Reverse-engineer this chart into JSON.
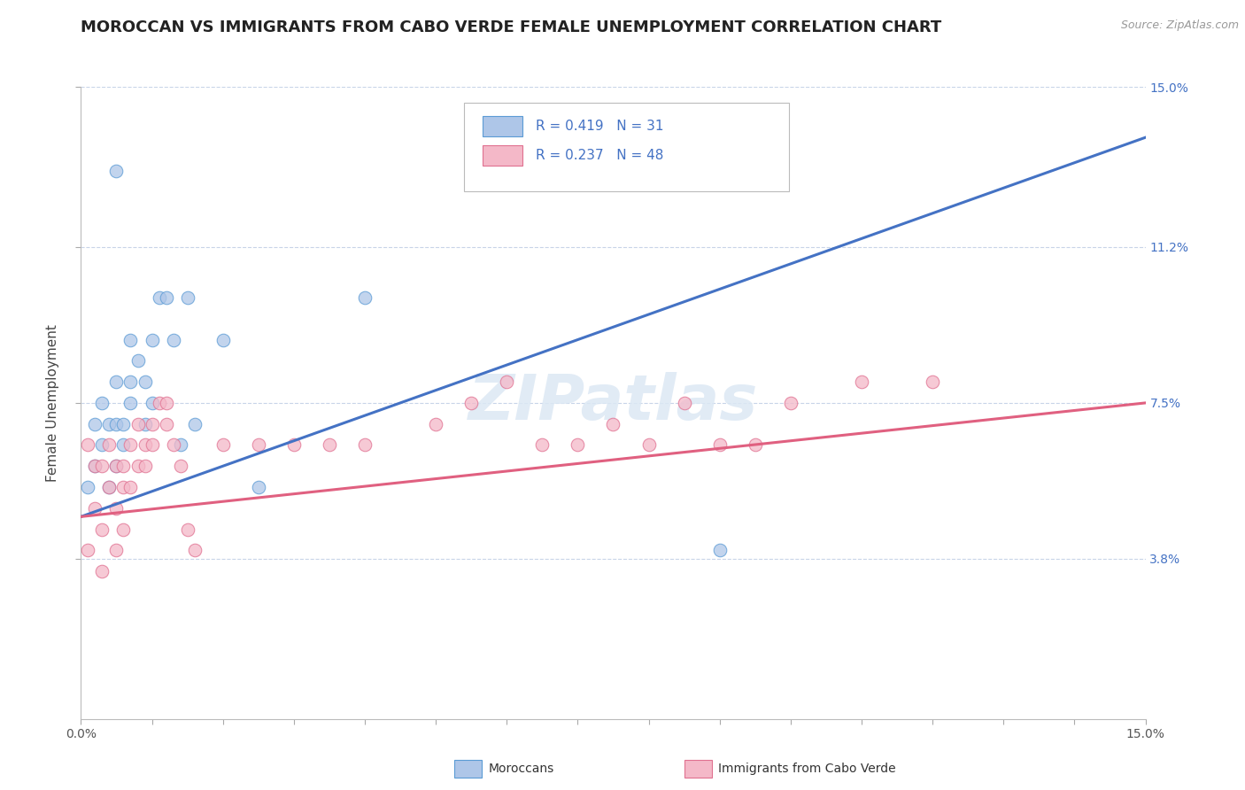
{
  "title": "MOROCCAN VS IMMIGRANTS FROM CABO VERDE FEMALE UNEMPLOYMENT CORRELATION CHART",
  "source": "Source: ZipAtlas.com",
  "ylabel": "Female Unemployment",
  "xmin": 0.0,
  "xmax": 0.15,
  "ymin": 0.0,
  "ymax": 0.15,
  "ytick_vals": [
    0.038,
    0.075,
    0.112,
    0.15
  ],
  "ytick_labels": [
    "3.8%",
    "7.5%",
    "11.2%",
    "15.0%"
  ],
  "color_moroccan_fill": "#aec6e8",
  "color_moroccan_edge": "#5b9bd5",
  "color_caboverde_fill": "#f4b8c8",
  "color_caboverde_edge": "#e07090",
  "color_line_blue": "#4472c4",
  "color_line_pink": "#e06080",
  "color_grid": "#c8d4e8",
  "background": "#ffffff",
  "moroccan_x": [
    0.001,
    0.002,
    0.002,
    0.003,
    0.003,
    0.004,
    0.004,
    0.005,
    0.005,
    0.005,
    0.006,
    0.006,
    0.007,
    0.007,
    0.007,
    0.008,
    0.009,
    0.009,
    0.01,
    0.01,
    0.011,
    0.012,
    0.013,
    0.014,
    0.015,
    0.016,
    0.02,
    0.025,
    0.04,
    0.09,
    0.005
  ],
  "moroccan_y": [
    0.055,
    0.07,
    0.06,
    0.075,
    0.065,
    0.055,
    0.07,
    0.08,
    0.07,
    0.06,
    0.065,
    0.07,
    0.08,
    0.075,
    0.09,
    0.085,
    0.08,
    0.07,
    0.09,
    0.075,
    0.1,
    0.1,
    0.09,
    0.065,
    0.1,
    0.07,
    0.09,
    0.055,
    0.1,
    0.04,
    0.13
  ],
  "caboverde_x": [
    0.001,
    0.001,
    0.002,
    0.002,
    0.003,
    0.003,
    0.003,
    0.004,
    0.004,
    0.005,
    0.005,
    0.005,
    0.006,
    0.006,
    0.006,
    0.007,
    0.007,
    0.008,
    0.008,
    0.009,
    0.009,
    0.01,
    0.01,
    0.011,
    0.012,
    0.012,
    0.013,
    0.014,
    0.015,
    0.016,
    0.02,
    0.025,
    0.03,
    0.035,
    0.04,
    0.05,
    0.055,
    0.06,
    0.065,
    0.07,
    0.075,
    0.08,
    0.085,
    0.09,
    0.095,
    0.1,
    0.11,
    0.12
  ],
  "caboverde_y": [
    0.065,
    0.04,
    0.06,
    0.05,
    0.06,
    0.045,
    0.035,
    0.055,
    0.065,
    0.06,
    0.05,
    0.04,
    0.06,
    0.055,
    0.045,
    0.065,
    0.055,
    0.07,
    0.06,
    0.065,
    0.06,
    0.07,
    0.065,
    0.075,
    0.07,
    0.075,
    0.065,
    0.06,
    0.045,
    0.04,
    0.065,
    0.065,
    0.065,
    0.065,
    0.065,
    0.07,
    0.075,
    0.08,
    0.065,
    0.065,
    0.07,
    0.065,
    0.075,
    0.065,
    0.065,
    0.075,
    0.08,
    0.08
  ],
  "line1_x0": 0.0,
  "line1_y0": 0.048,
  "line1_x1": 0.15,
  "line1_y1": 0.138,
  "line2_x0": 0.0,
  "line2_y0": 0.048,
  "line2_x1": 0.15,
  "line2_y1": 0.075,
  "watermark_text": "ZIPatlas",
  "title_fontsize": 13,
  "source_fontsize": 9,
  "tick_fontsize": 10,
  "ylabel_fontsize": 11
}
